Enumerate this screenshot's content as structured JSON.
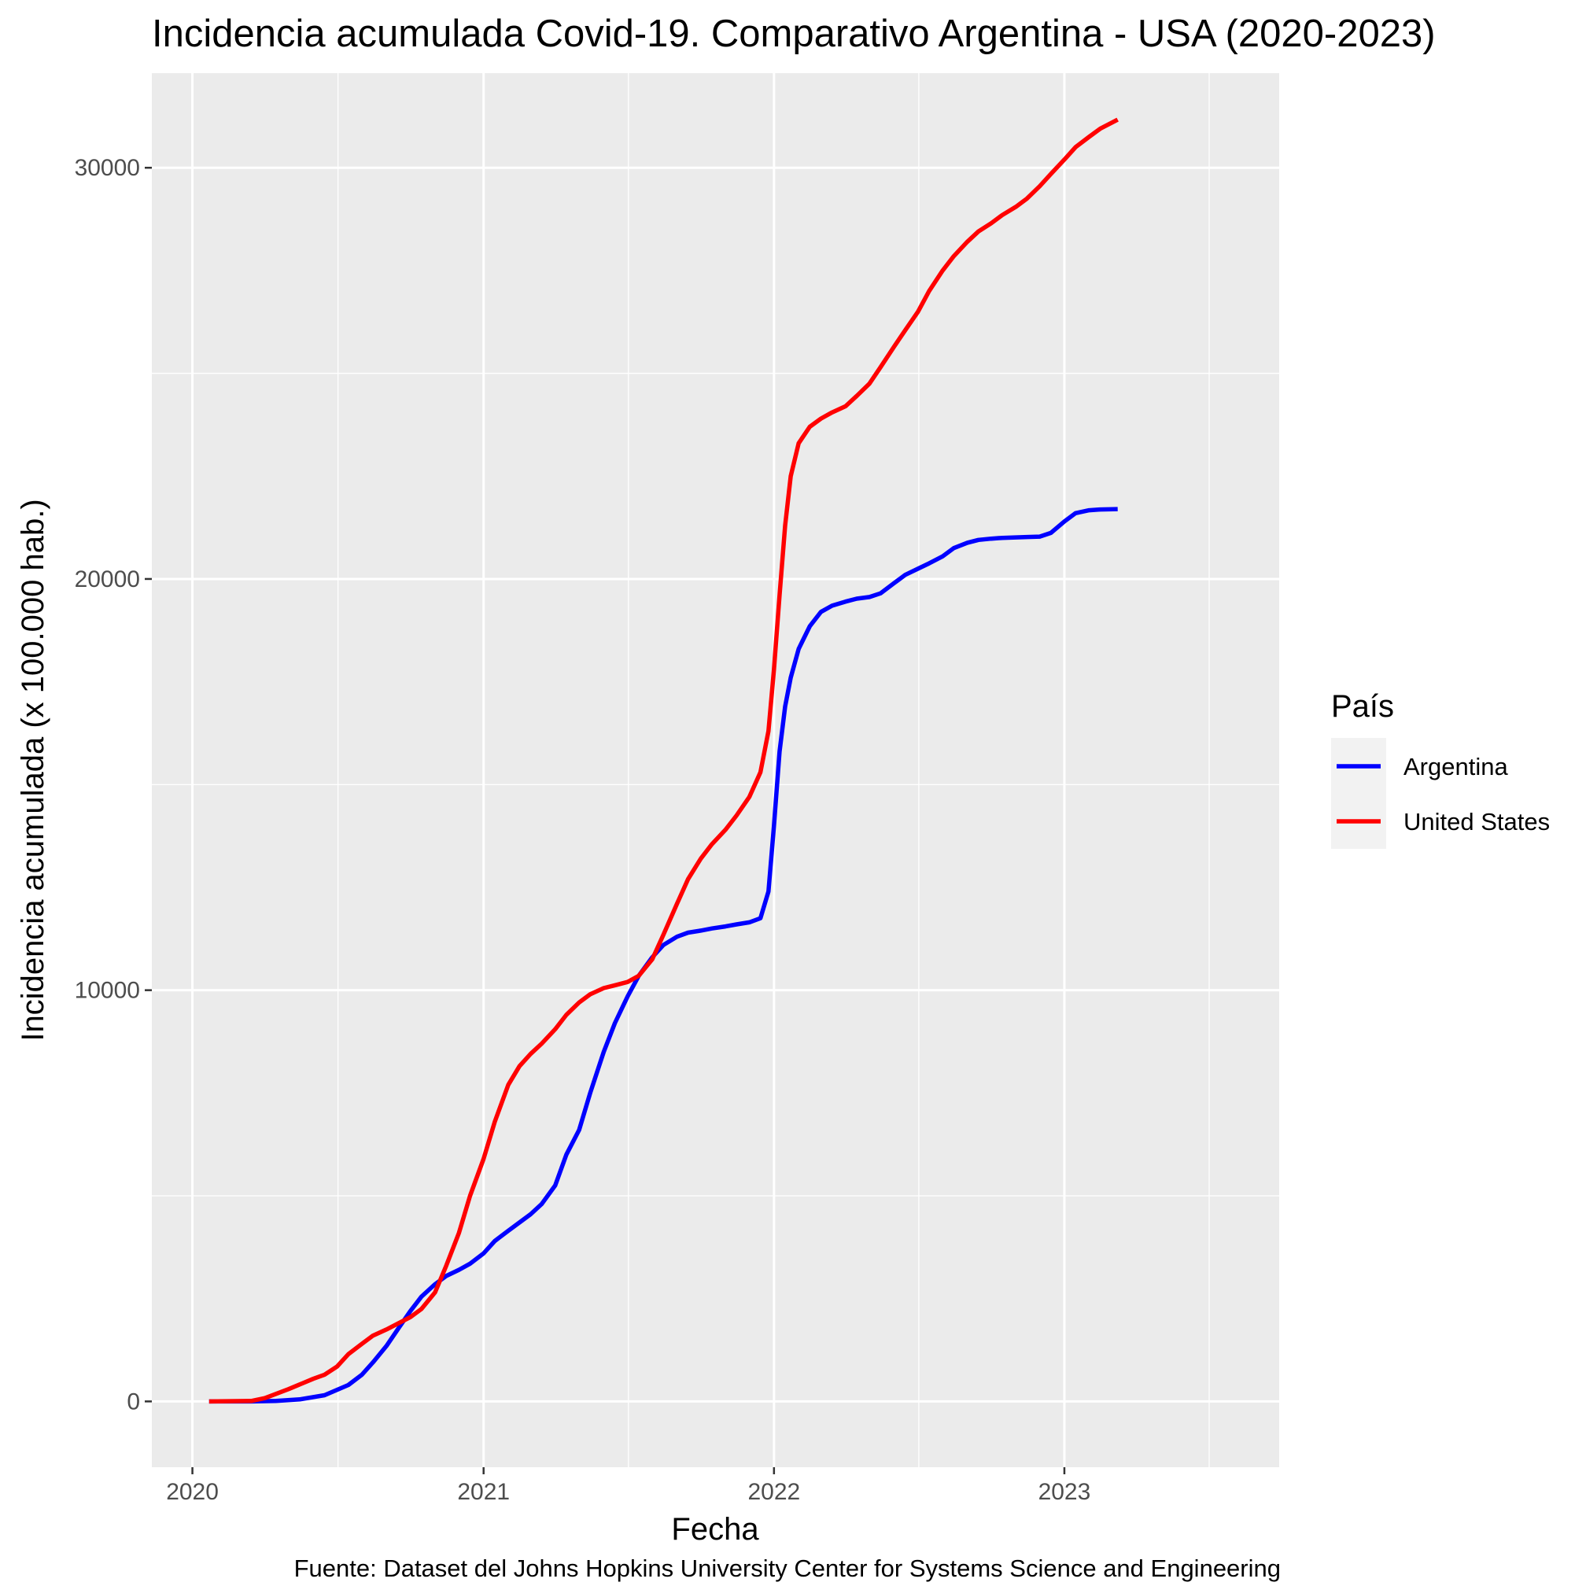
{
  "chart_data": {
    "type": "line",
    "title": "Incidencia acumulada Covid-19. Comparativo Argentina - USA (2020-2023)",
    "xlabel": "Fecha",
    "ylabel": "Incidencia acumulada (x 100.000 hab.)",
    "caption": "Fuente: Dataset del Johns Hopkins University Center for Systems Science and Engineering",
    "x_ticks": [
      "2020",
      "2021",
      "2022",
      "2023"
    ],
    "y_ticks": [
      "0",
      "10000",
      "20000",
      "30000"
    ],
    "xlim": [
      "2019-11-11",
      "2023-09-28"
    ],
    "ylim": [
      -1600,
      32300
    ],
    "grid": true,
    "legend": {
      "title": "País",
      "position": "right"
    },
    "series": [
      {
        "name": "Argentina",
        "color": "#0000ff",
        "points": [
          [
            "2020-01-22",
            0
          ],
          [
            "2020-03-15",
            0
          ],
          [
            "2020-04-15",
            10
          ],
          [
            "2020-05-15",
            50
          ],
          [
            "2020-06-15",
            150
          ],
          [
            "2020-07-15",
            400
          ],
          [
            "2020-08-01",
            650
          ],
          [
            "2020-08-15",
            950
          ],
          [
            "2020-09-01",
            1350
          ],
          [
            "2020-09-15",
            1750
          ],
          [
            "2020-10-01",
            2200
          ],
          [
            "2020-10-15",
            2550
          ],
          [
            "2020-11-01",
            2850
          ],
          [
            "2020-11-15",
            3050
          ],
          [
            "2020-12-01",
            3200
          ],
          [
            "2020-12-15",
            3350
          ],
          [
            "2021-01-01",
            3600
          ],
          [
            "2021-01-15",
            3900
          ],
          [
            "2021-02-01",
            4150
          ],
          [
            "2021-02-15",
            4350
          ],
          [
            "2021-03-01",
            4550
          ],
          [
            "2021-03-15",
            4800
          ],
          [
            "2021-04-01",
            5250
          ],
          [
            "2021-04-15",
            6000
          ],
          [
            "2021-05-01",
            6600
          ],
          [
            "2021-05-15",
            7500
          ],
          [
            "2021-06-01",
            8500
          ],
          [
            "2021-06-15",
            9200
          ],
          [
            "2021-07-01",
            9850
          ],
          [
            "2021-07-15",
            10350
          ],
          [
            "2021-08-01",
            10800
          ],
          [
            "2021-08-15",
            11100
          ],
          [
            "2021-09-01",
            11300
          ],
          [
            "2021-09-15",
            11400
          ],
          [
            "2021-10-01",
            11450
          ],
          [
            "2021-10-15",
            11500
          ],
          [
            "2021-11-01",
            11550
          ],
          [
            "2021-11-15",
            11600
          ],
          [
            "2021-12-01",
            11650
          ],
          [
            "2021-12-15",
            11750
          ],
          [
            "2021-12-25",
            12400
          ],
          [
            "2022-01-01",
            14000
          ],
          [
            "2022-01-08",
            15800
          ],
          [
            "2022-01-15",
            16900
          ],
          [
            "2022-01-22",
            17600
          ],
          [
            "2022-02-01",
            18300
          ],
          [
            "2022-02-15",
            18850
          ],
          [
            "2022-03-01",
            19200
          ],
          [
            "2022-03-15",
            19350
          ],
          [
            "2022-04-01",
            19450
          ],
          [
            "2022-04-15",
            19520
          ],
          [
            "2022-05-01",
            19560
          ],
          [
            "2022-05-15",
            19650
          ],
          [
            "2022-06-01",
            19900
          ],
          [
            "2022-06-15",
            20100
          ],
          [
            "2022-07-01",
            20250
          ],
          [
            "2022-07-15",
            20380
          ],
          [
            "2022-08-01",
            20550
          ],
          [
            "2022-08-15",
            20750
          ],
          [
            "2022-09-01",
            20880
          ],
          [
            "2022-09-15",
            20950
          ],
          [
            "2022-10-01",
            20980
          ],
          [
            "2022-10-15",
            21000
          ],
          [
            "2022-11-01",
            21010
          ],
          [
            "2022-11-15",
            21020
          ],
          [
            "2022-12-01",
            21030
          ],
          [
            "2022-12-15",
            21120
          ],
          [
            "2023-01-01",
            21400
          ],
          [
            "2023-01-15",
            21600
          ],
          [
            "2023-02-01",
            21670
          ],
          [
            "2023-02-15",
            21690
          ],
          [
            "2023-03-09",
            21700
          ]
        ]
      },
      {
        "name": "United States",
        "color": "#ff0000",
        "points": [
          [
            "2020-01-22",
            0
          ],
          [
            "2020-03-15",
            10
          ],
          [
            "2020-04-01",
            80
          ],
          [
            "2020-05-01",
            300
          ],
          [
            "2020-06-01",
            550
          ],
          [
            "2020-06-15",
            650
          ],
          [
            "2020-07-01",
            850
          ],
          [
            "2020-07-15",
            1150
          ],
          [
            "2020-08-01",
            1400
          ],
          [
            "2020-08-15",
            1600
          ],
          [
            "2020-09-01",
            1750
          ],
          [
            "2020-10-01",
            2050
          ],
          [
            "2020-10-15",
            2250
          ],
          [
            "2020-11-01",
            2650
          ],
          [
            "2020-11-15",
            3300
          ],
          [
            "2020-12-01",
            4100
          ],
          [
            "2020-12-15",
            5000
          ],
          [
            "2021-01-01",
            5900
          ],
          [
            "2021-01-15",
            6800
          ],
          [
            "2021-02-01",
            7700
          ],
          [
            "2021-02-15",
            8150
          ],
          [
            "2021-03-01",
            8450
          ],
          [
            "2021-03-15",
            8700
          ],
          [
            "2021-04-01",
            9050
          ],
          [
            "2021-04-15",
            9400
          ],
          [
            "2021-05-01",
            9700
          ],
          [
            "2021-05-15",
            9900
          ],
          [
            "2021-06-01",
            10050
          ],
          [
            "2021-06-15",
            10120
          ],
          [
            "2021-07-01",
            10200
          ],
          [
            "2021-07-15",
            10350
          ],
          [
            "2021-08-01",
            10750
          ],
          [
            "2021-08-15",
            11350
          ],
          [
            "2021-09-01",
            12100
          ],
          [
            "2021-09-15",
            12700
          ],
          [
            "2021-10-01",
            13200
          ],
          [
            "2021-10-15",
            13550
          ],
          [
            "2021-11-01",
            13900
          ],
          [
            "2021-11-15",
            14250
          ],
          [
            "2021-12-01",
            14700
          ],
          [
            "2021-12-15",
            15300
          ],
          [
            "2021-12-25",
            16300
          ],
          [
            "2022-01-01",
            17800
          ],
          [
            "2022-01-08",
            19600
          ],
          [
            "2022-01-15",
            21300
          ],
          [
            "2022-01-22",
            22500
          ],
          [
            "2022-02-01",
            23300
          ],
          [
            "2022-02-15",
            23700
          ],
          [
            "2022-03-01",
            23900
          ],
          [
            "2022-03-15",
            24050
          ],
          [
            "2022-04-01",
            24200
          ],
          [
            "2022-04-15",
            24450
          ],
          [
            "2022-05-01",
            24750
          ],
          [
            "2022-05-15",
            25150
          ],
          [
            "2022-06-01",
            25650
          ],
          [
            "2022-06-15",
            26050
          ],
          [
            "2022-07-01",
            26500
          ],
          [
            "2022-07-15",
            27000
          ],
          [
            "2022-08-01",
            27500
          ],
          [
            "2022-08-15",
            27850
          ],
          [
            "2022-09-01",
            28200
          ],
          [
            "2022-09-15",
            28450
          ],
          [
            "2022-10-01",
            28650
          ],
          [
            "2022-10-15",
            28850
          ],
          [
            "2022-11-01",
            29050
          ],
          [
            "2022-11-15",
            29250
          ],
          [
            "2022-12-01",
            29550
          ],
          [
            "2022-12-15",
            29850
          ],
          [
            "2023-01-01",
            30200
          ],
          [
            "2023-01-15",
            30500
          ],
          [
            "2023-02-01",
            30750
          ],
          [
            "2023-02-15",
            30950
          ],
          [
            "2023-03-09",
            31170
          ]
        ]
      }
    ]
  }
}
